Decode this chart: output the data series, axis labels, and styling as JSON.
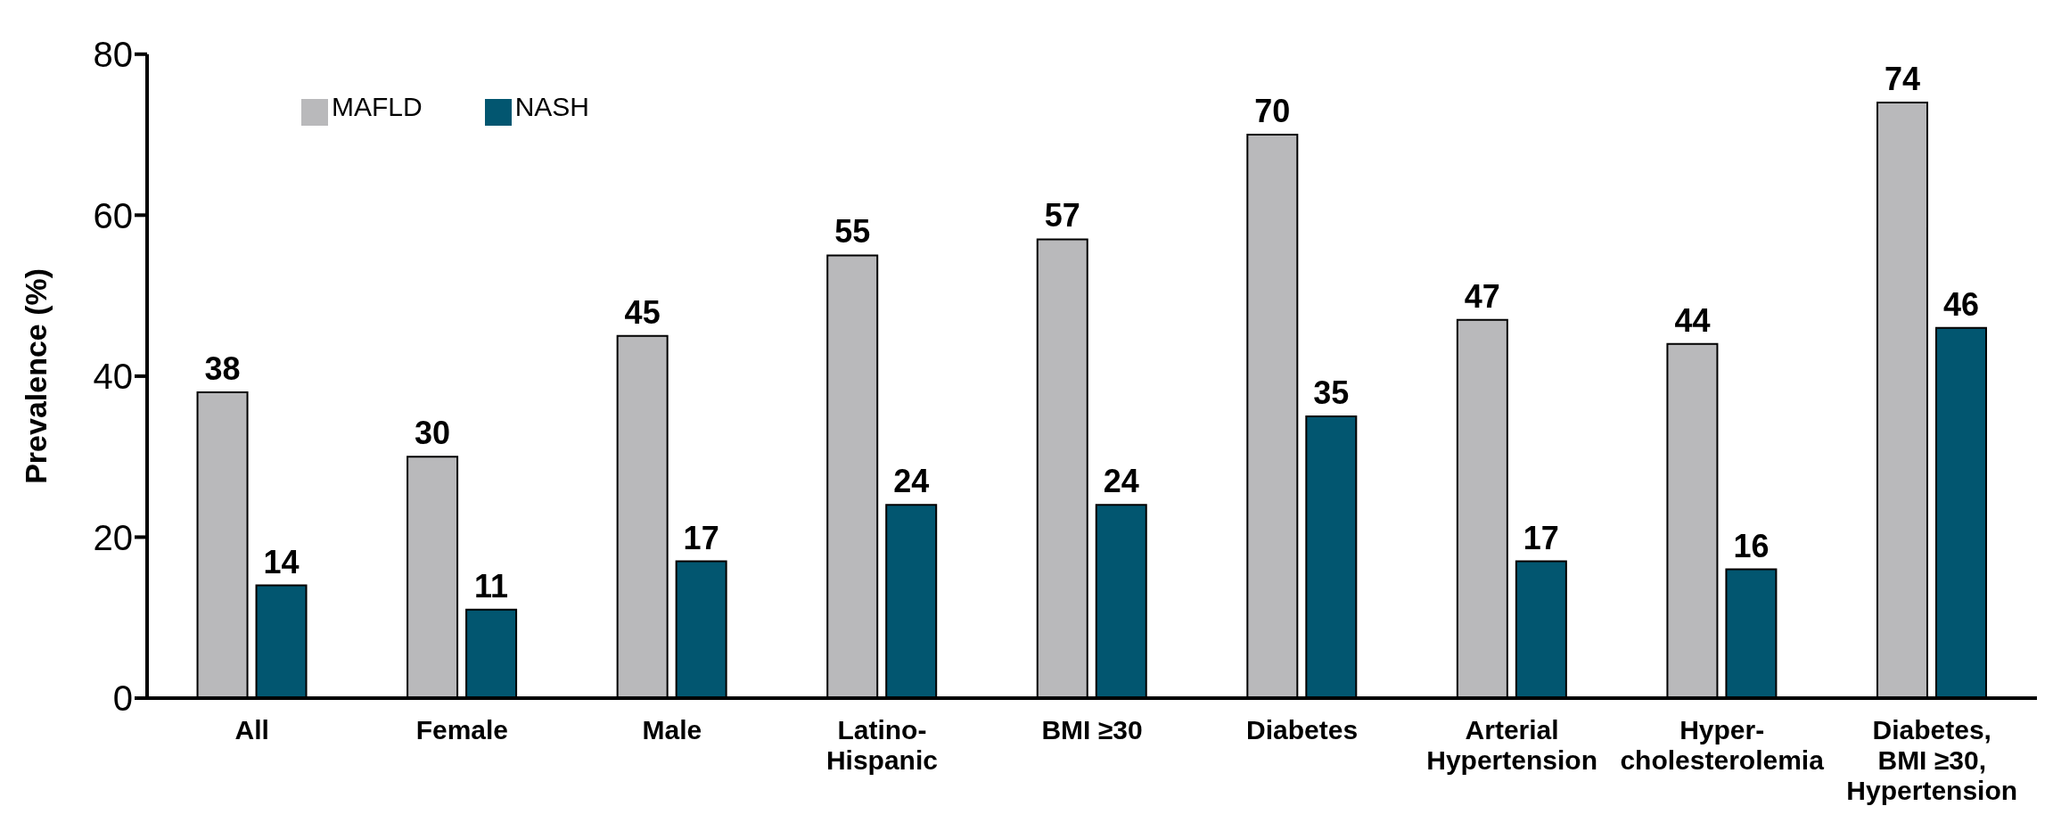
{
  "chart_data": {
    "type": "bar",
    "ylabel": "Prevalence (%)",
    "categories": [
      "All",
      "Female",
      "Male",
      "Latino-Hispanic",
      "BMI ≥30",
      "Diabetes",
      "Arterial Hypertension",
      "Hyper-cholesterolemia",
      "Diabetes, BMI ≥30, Hypertension"
    ],
    "series": [
      {
        "name": "MAFLD",
        "color": "#b9b9bb",
        "values": [
          38,
          30,
          45,
          55,
          57,
          70,
          47,
          44,
          74
        ]
      },
      {
        "name": "NASH",
        "color": "#025670",
        "values": [
          14,
          11,
          17,
          24,
          24,
          35,
          17,
          16,
          46
        ]
      }
    ],
    "ylim": [
      0,
      80
    ],
    "yticks": [
      0,
      20,
      40,
      60,
      80
    ],
    "grid": false,
    "legend": "top left",
    "data_labels": true
  }
}
